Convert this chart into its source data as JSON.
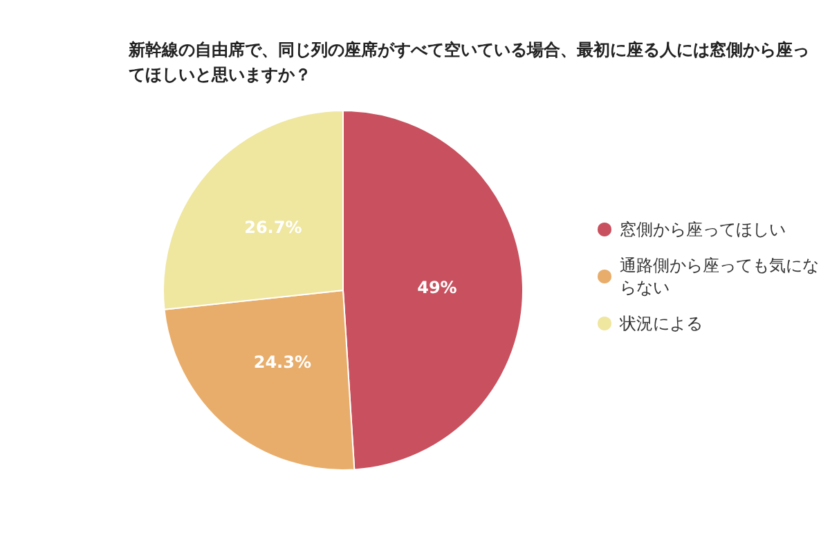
{
  "chart_data": {
    "type": "pie",
    "title": "新幹線の自由席で、同じ列の座席がすべて空いている場合、最初に座る人には窓側から座ってほしいと思いますか？",
    "categories": [
      "窓側から座ってほしい",
      "通路側から座っても気にならない",
      "状況による"
    ],
    "values": [
      49,
      24.3,
      26.7
    ],
    "colors": [
      "#c9505e",
      "#e8ad6a",
      "#efe6a0"
    ],
    "value_labels": [
      "49%",
      "24.3%",
      "26.7%"
    ],
    "legend": "right"
  }
}
